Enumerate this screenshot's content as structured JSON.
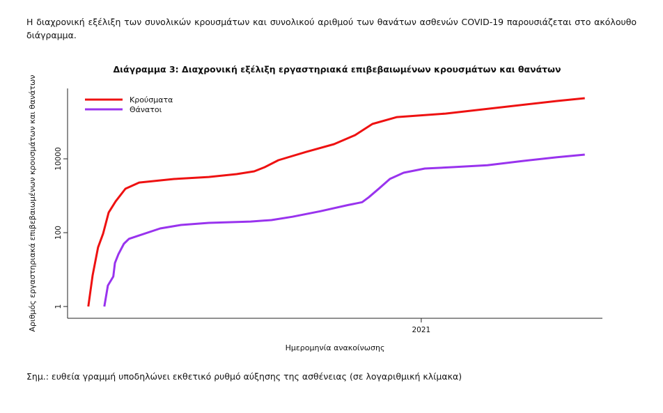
{
  "intro": "Η διαχρονική εξέλιξη των συνολικών κρουσμάτων και συνολικού αριθμού των θανάτων ασθενών COVID-19 παρουσιάζεται στο ακόλουθο διάγραμμα.",
  "chart_data": {
    "type": "line",
    "title": "Διάγραμμα 3: Διαχρονική εξέλιξη εργαστηριακά επιβεβαιωμένων κρουσμάτων και θανάτων",
    "x_label": "Ημερομηνία ανακοίνωσης",
    "y_label": "Αριθμός εργαστηριακά επιβεβαιωμένων κρουσμάτων και θανάτων",
    "log_y": true,
    "legend": "top-left",
    "xlim": [
      2020.096,
      2021.463
    ],
    "xticks": [
      2021
    ],
    "ylim": [
      0.48,
      805000
    ],
    "yticks": [
      1,
      100,
      10000
    ],
    "series": [
      {
        "name": "Κρούσματα",
        "color": "#ee1111",
        "x": [
          2020.149,
          2020.16,
          2020.174,
          2020.187,
          2020.201,
          2020.219,
          2020.244,
          2020.279,
          2020.368,
          2020.457,
          2020.528,
          2020.573,
          2020.6,
          2020.635,
          2020.706,
          2020.777,
          2020.831,
          2020.875,
          2020.938,
          2021.062,
          2021.205,
          2021.347,
          2021.418
        ],
        "values": [
          1,
          7,
          40,
          95,
          350,
          705,
          1550,
          2280,
          2840,
          3230,
          3850,
          4580,
          5940,
          9170,
          15400,
          24900,
          43800,
          87800,
          135000,
          168000,
          249000,
          368000,
          438000
        ]
      },
      {
        "name": "Θάνατοι",
        "color": "#9933ee",
        "x": [
          2020.19,
          2020.199,
          2020.213,
          2020.217,
          2020.226,
          2020.24,
          2020.253,
          2020.279,
          2020.333,
          2020.386,
          2020.457,
          2020.564,
          2020.617,
          2020.671,
          2020.742,
          2020.813,
          2020.849,
          2020.866,
          2020.893,
          2020.92,
          2020.955,
          2021.009,
          2021.08,
          2021.169,
          2021.258,
          2021.347,
          2021.418
        ],
        "values": [
          1,
          3.7,
          6.5,
          15,
          26,
          50,
          68,
          84,
          130,
          162,
          184,
          200,
          219,
          270,
          380,
          560,
          670,
          910,
          1600,
          2850,
          4200,
          5450,
          5940,
          6700,
          8700,
          11000,
          13000
        ]
      }
    ]
  },
  "note": "Σημ.: ευθεία γραμμή υποδηλώνει εκθετικό ρυθμό αύξησης της ασθένειας (σε λογαριθμική κλίμακα)"
}
